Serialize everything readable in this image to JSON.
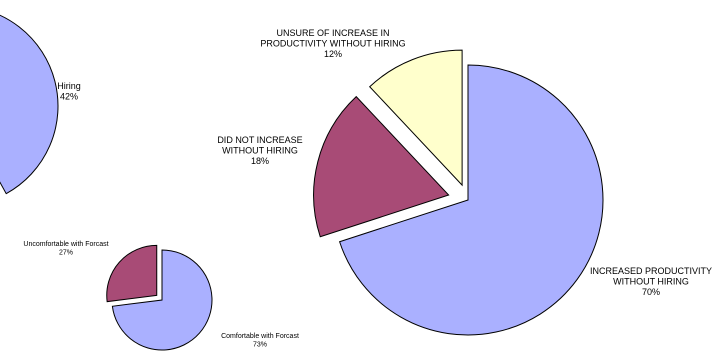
{
  "chart_data": [
    {
      "type": "pie",
      "slices": [
        {
          "label": "Hiring",
          "value": 42,
          "value_label": "42%",
          "color": "#aab0ff"
        },
        {
          "label": "",
          "value": 58,
          "value_label": "",
          "color": "#a84b76"
        }
      ]
    },
    {
      "type": "pie",
      "slices": [
        {
          "label": "Comfortable with Forcast",
          "value": 73,
          "value_label": "73%",
          "color": "#aab0ff"
        },
        {
          "label": "Uncomfortable with Forcast",
          "value": 27,
          "value_label": "27%",
          "color": "#a84b76"
        }
      ]
    },
    {
      "type": "pie",
      "slices": [
        {
          "label": "INCREASED PRODUCTIVITY WITHOUT HIRING",
          "value": 70,
          "value_label": "70%",
          "color": "#aab0ff"
        },
        {
          "label": "DID NOT INCREASE WITHOUT HIRING",
          "value": 18,
          "value_label": "18%",
          "color": "#a84b76"
        },
        {
          "label": "UNSURE OF INCREASE IN PRODUCTIVITY WITHOUT HIRING",
          "value": 12,
          "value_label": "12%",
          "color": "#ffffcc"
        }
      ]
    }
  ]
}
